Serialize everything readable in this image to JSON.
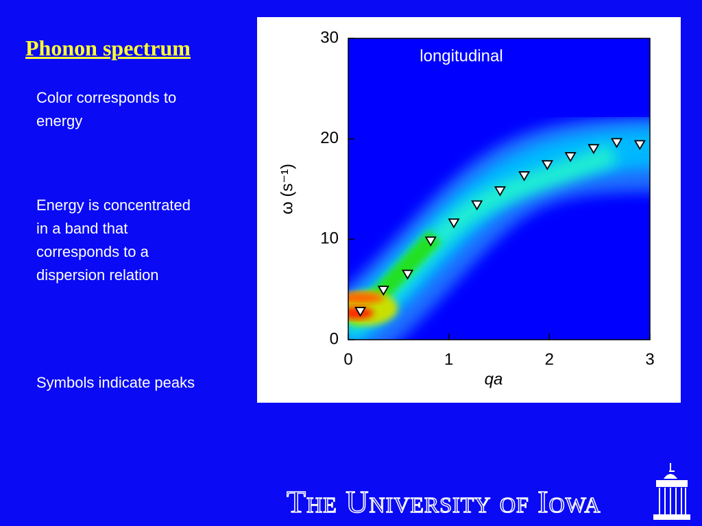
{
  "slide": {
    "title": "Phonon spectrum",
    "bullets": [
      "Color corresponds to energy",
      "Energy is concentrated in a band that corresponds to a dispersion relation",
      "Symbols indicate peaks"
    ],
    "footer": "The University of Iowa"
  },
  "chart_data": {
    "type": "scatter",
    "title": "longitudinal",
    "xlabel": "qa",
    "ylabel": "ω (s⁻¹)",
    "x": [
      0.12,
      0.35,
      0.59,
      0.82,
      1.05,
      1.28,
      1.51,
      1.75,
      1.98,
      2.21,
      2.44,
      2.67,
      2.9
    ],
    "y": [
      2.8,
      4.9,
      6.5,
      9.8,
      11.6,
      13.4,
      14.8,
      16.3,
      17.4,
      18.2,
      19.0,
      19.6,
      19.4
    ],
    "color": "#ffffff",
    "xlim": [
      0,
      3
    ],
    "ylim": [
      0,
      30
    ],
    "xticks": [
      0,
      1,
      2,
      3
    ],
    "yticks": [
      0,
      10,
      20,
      30
    ]
  }
}
